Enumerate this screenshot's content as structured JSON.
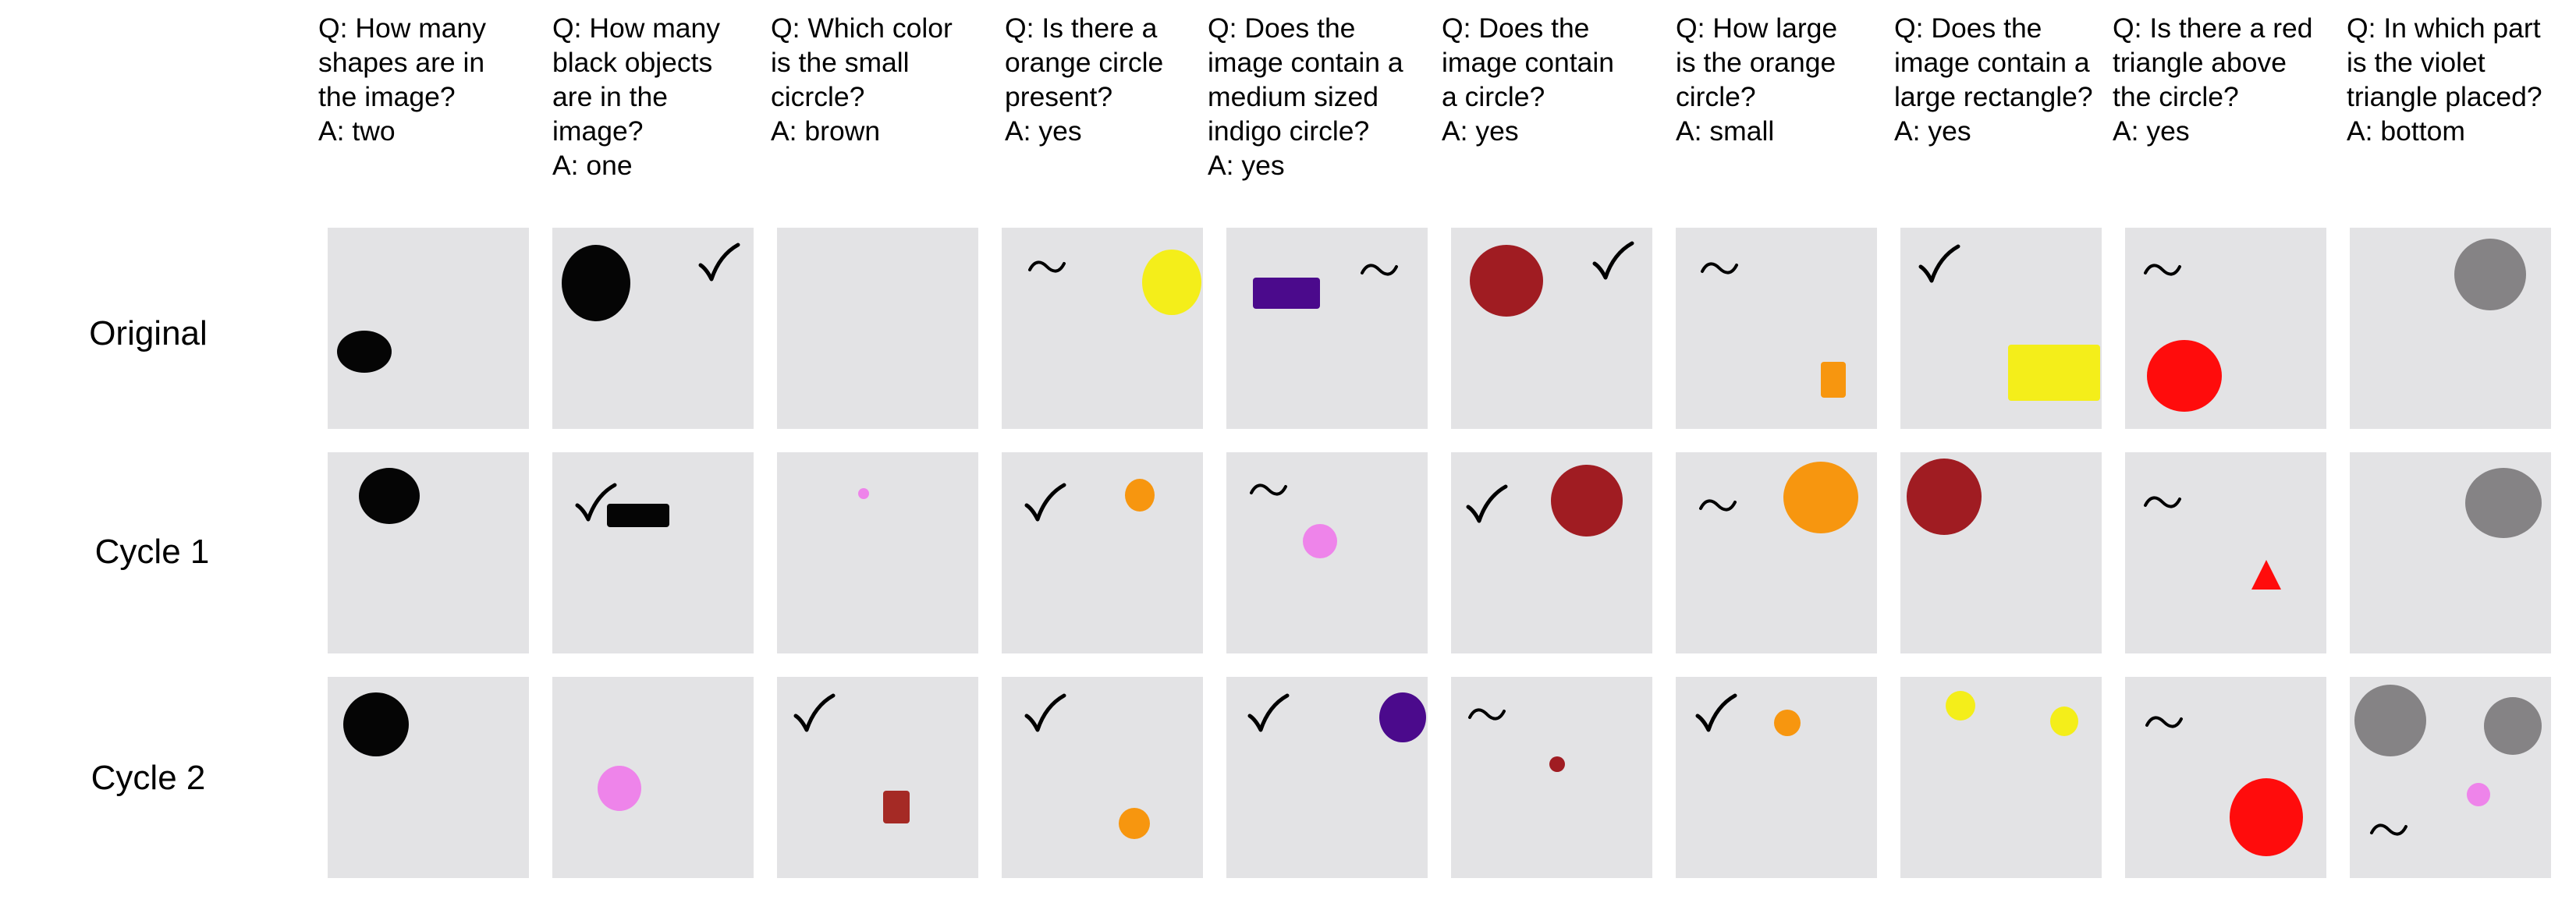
{
  "row_labels": [
    "Original",
    "Cycle 1",
    "Cycle 2"
  ],
  "columns": [
    {
      "q": [
        "Q: How many",
        "shapes are in",
        "the image?"
      ],
      "a": "A: two"
    },
    {
      "q": [
        "Q: How many",
        "black objects",
        "are in the",
        "image?"
      ],
      "a": "A: one"
    },
    {
      "q": [
        "Q: Which color",
        "is the small",
        "cicrcle?"
      ],
      "a": "A: brown"
    },
    {
      "q": [
        "Q: Is there a",
        "orange circle",
        "present?"
      ],
      "a": "A: yes"
    },
    {
      "q": [
        "Q: Does the",
        "image contain a",
        "medium sized",
        "indigo circle?"
      ],
      "a": "A: yes"
    },
    {
      "q": [
        "Q: Does the",
        "image contain",
        "a circle?"
      ],
      "a": "A: yes"
    },
    {
      "q": [
        "Q: How large",
        "is the orange",
        "circle?"
      ],
      "a": "A: small"
    },
    {
      "q": [
        "Q: Does the",
        "image contain a",
        "large rectangle?"
      ],
      "a": "A: yes"
    },
    {
      "q": [
        "Q: Is there a red",
        "triangle above",
        "the circle?"
      ],
      "a": "A: yes"
    },
    {
      "q": [
        "Q: In which part",
        "is the violet",
        "triangle placed?"
      ],
      "a": "A: bottom"
    }
  ],
  "colors": {
    "tile_background": "#e3e3e5",
    "black": "#050505",
    "yellow": "#f4ee1a",
    "indigo": "#4b0a8c",
    "dark_red": "#a01c22",
    "orange": "#f7960f",
    "red": "#ff0c0c",
    "gray": "#858385",
    "violet": "#ee84ea",
    "brown": "#a52a25"
  },
  "marks": {
    "check": "checkmark-icon",
    "approx": "tilde-icon"
  }
}
